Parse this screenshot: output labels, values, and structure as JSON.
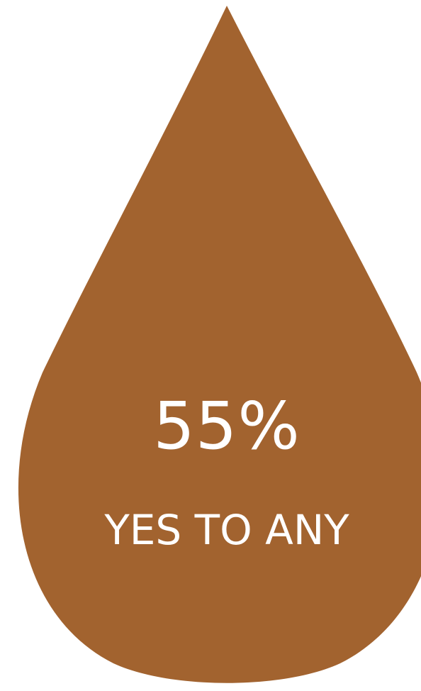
{
  "drop": {
    "color": "#A2632F",
    "icon": "water-drop-icon"
  },
  "stat": {
    "value": "55%",
    "caption": "YES TO ANY"
  }
}
